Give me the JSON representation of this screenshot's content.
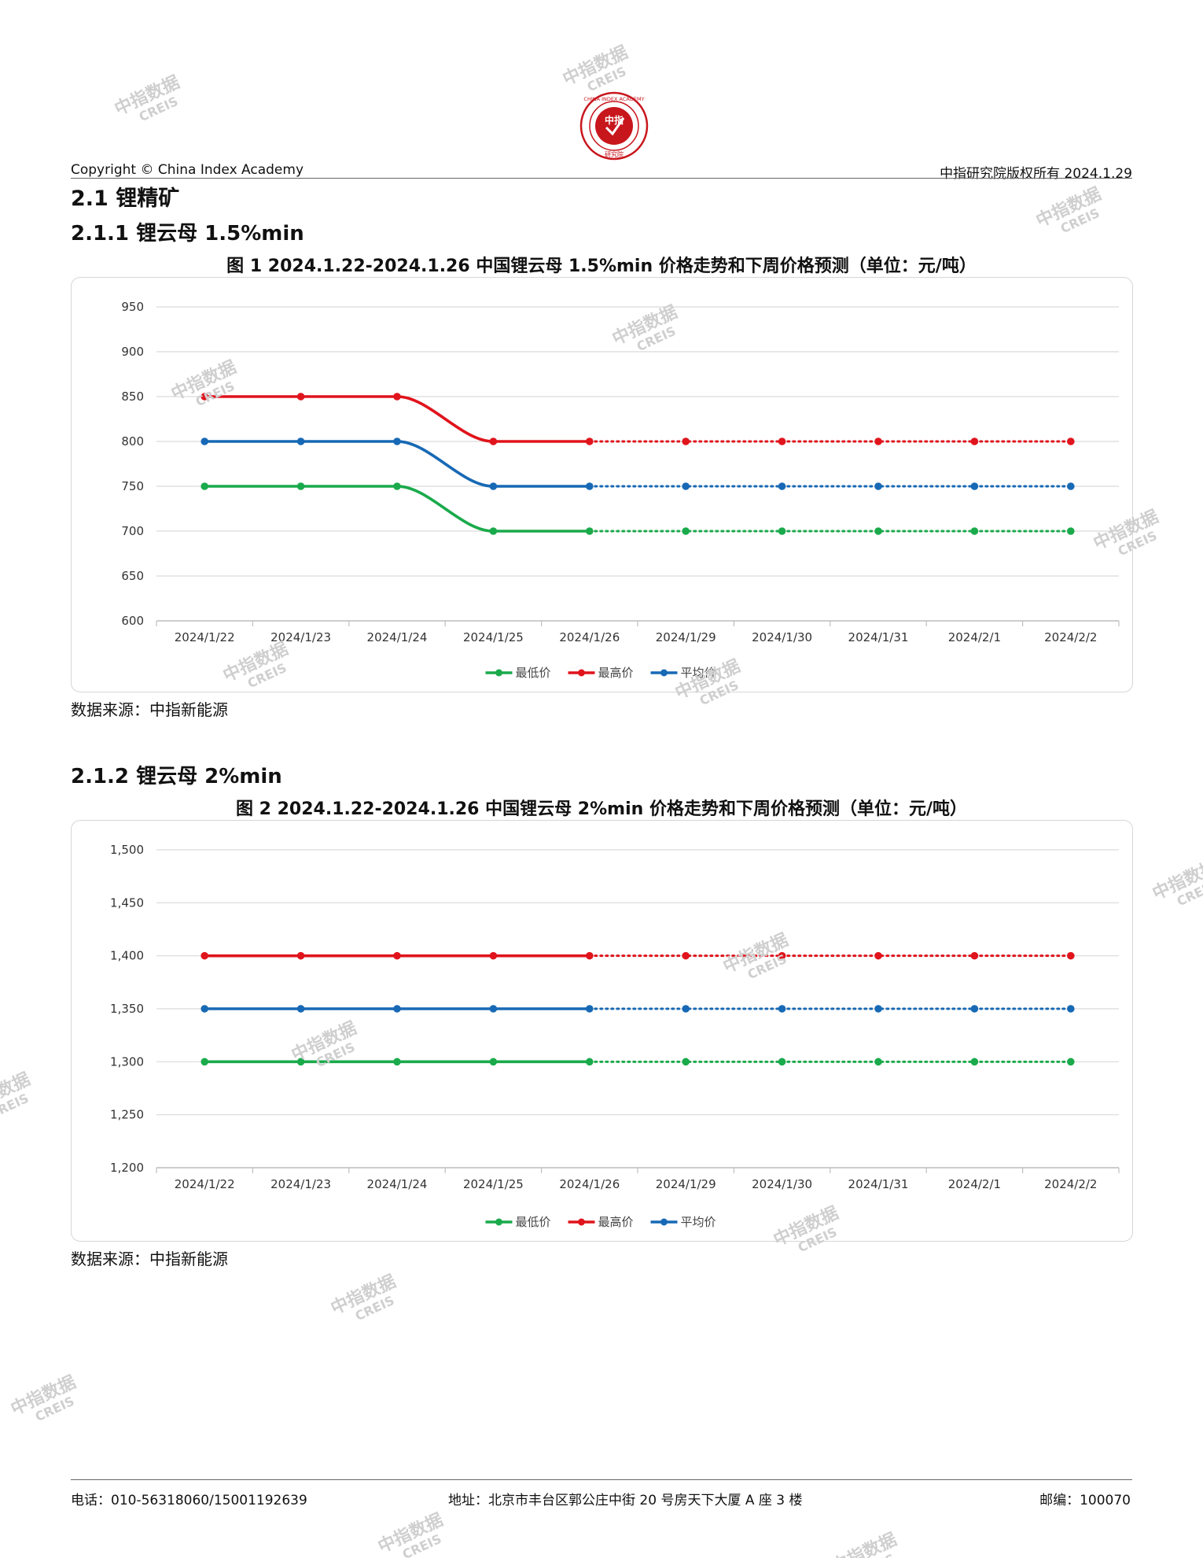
{
  "header": {
    "copyright": "Copyright © China Index Academy",
    "rights": "中指研究院版权所有 2024.1.29",
    "logo": {
      "ring_text": "CHINA INDEX ACADEMY",
      "center": "中指",
      "bottom": "研究院",
      "color": "#c8161d"
    }
  },
  "section": {
    "title": "2.1 锂精矿",
    "sub1": "2.1.1 锂云母 1.5%min",
    "sub2": "2.1.2 锂云母 2%min"
  },
  "watermark": {
    "line1": "中指数据",
    "line2": "CREIS"
  },
  "footer": {
    "phone": "电话：010-56318060/15001192639",
    "address": "地址：北京市丰台区郭公庄中街 20 号房天下大厦 A 座 3 楼",
    "postcode": "邮编：100070"
  },
  "chart_data": [
    {
      "type": "line",
      "title": "图 1 2024.1.22-2024.1.26 中国锂云母 1.5%min 价格走势和下周价格预测（单位：元/吨）",
      "source": "数据来源：中指新能源",
      "categories": [
        "2024/1/22",
        "2024/1/23",
        "2024/1/24",
        "2024/1/25",
        "2024/1/26",
        "2024/1/29",
        "2024/1/30",
        "2024/1/31",
        "2024/2/1",
        "2024/2/2"
      ],
      "actual_count": 5,
      "ylim": [
        600,
        950
      ],
      "yticks": [
        600,
        650,
        700,
        750,
        800,
        850,
        900,
        950
      ],
      "ytick_labels": [
        "600",
        "650",
        "700",
        "750",
        "800",
        "850",
        "900",
        "950"
      ],
      "grid": true,
      "legend": "bottom",
      "series": [
        {
          "name": "最低价",
          "color": "#1aaa4b",
          "values": [
            750,
            750,
            750,
            700,
            700,
            700,
            700,
            700,
            700,
            700
          ]
        },
        {
          "name": "最高价",
          "color": "#e0141c",
          "values": [
            850,
            850,
            850,
            800,
            800,
            800,
            800,
            800,
            800,
            800
          ]
        },
        {
          "name": "平均价",
          "color": "#1769b5",
          "values": [
            800,
            800,
            800,
            750,
            750,
            750,
            750,
            750,
            750,
            750
          ]
        }
      ]
    },
    {
      "type": "line",
      "title": "图 2 2024.1.22-2024.1.26 中国锂云母 2%min 价格走势和下周价格预测（单位：元/吨）",
      "source": "数据来源：中指新能源",
      "categories": [
        "2024/1/22",
        "2024/1/23",
        "2024/1/24",
        "2024/1/25",
        "2024/1/26",
        "2024/1/29",
        "2024/1/30",
        "2024/1/31",
        "2024/2/1",
        "2024/2/2"
      ],
      "actual_count": 5,
      "ylim": [
        1200,
        1500
      ],
      "yticks": [
        1200,
        1250,
        1300,
        1350,
        1400,
        1450,
        1500
      ],
      "ytick_labels": [
        "1,200",
        "1,250",
        "1,300",
        "1,350",
        "1,400",
        "1,450",
        "1,500"
      ],
      "grid": true,
      "legend": "bottom",
      "series": [
        {
          "name": "最低价",
          "color": "#1aaa4b",
          "values": [
            1300,
            1300,
            1300,
            1300,
            1300,
            1300,
            1300,
            1300,
            1300,
            1300
          ]
        },
        {
          "name": "最高价",
          "color": "#e0141c",
          "values": [
            1400,
            1400,
            1400,
            1400,
            1400,
            1400,
            1400,
            1400,
            1400,
            1400
          ]
        },
        {
          "name": "平均价",
          "color": "#1769b5",
          "values": [
            1350,
            1350,
            1350,
            1350,
            1350,
            1350,
            1350,
            1350,
            1350,
            1350
          ]
        }
      ]
    }
  ]
}
